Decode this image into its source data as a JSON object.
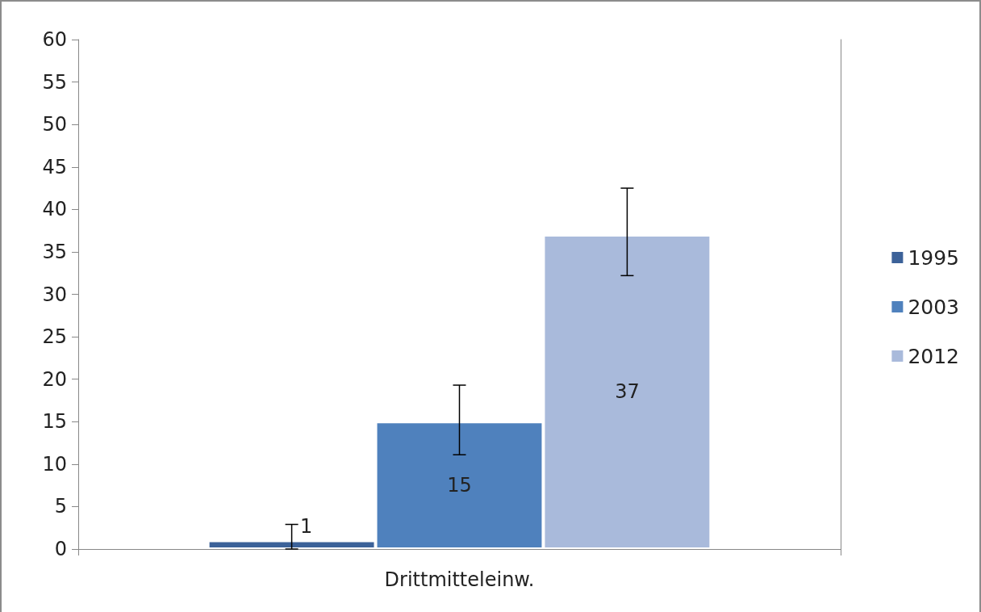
{
  "chart_data": {
    "type": "bar",
    "categories": [
      "Drittmitteleinw."
    ],
    "series": [
      {
        "name": "1995",
        "color": "#3c6299",
        "values": [
          1
        ],
        "errors": [
          [
            0,
            2.9
          ]
        ]
      },
      {
        "name": "2003",
        "color": "#4f81bd",
        "values": [
          15
        ],
        "errors": [
          [
            11.1,
            19.3
          ]
        ]
      },
      {
        "name": "2012",
        "color": "#a9badb",
        "values": [
          37
        ],
        "errors": [
          [
            32.2,
            42.5
          ]
        ]
      }
    ],
    "ylim": [
      0,
      60
    ],
    "yticks": [
      0,
      5,
      10,
      15,
      20,
      25,
      30,
      35,
      40,
      45,
      50,
      55,
      60
    ],
    "grid": false,
    "legend": "right",
    "data_labels": true
  }
}
